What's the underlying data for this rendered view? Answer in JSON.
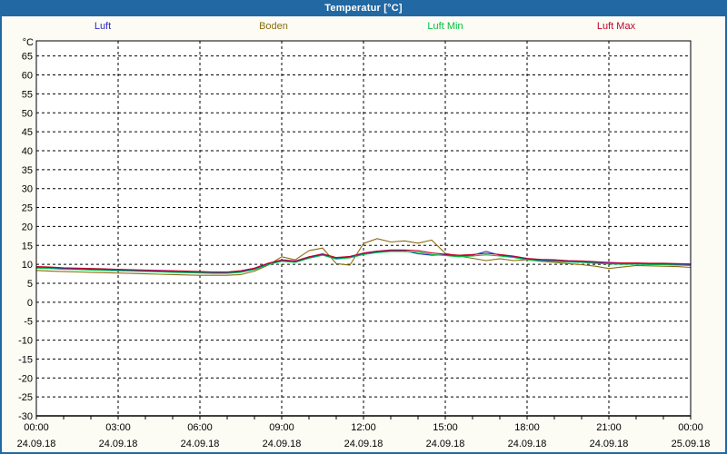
{
  "window": {
    "title": "Temperatur [°C]"
  },
  "colors": {
    "titlebar_bg": "#2268A2",
    "titlebar_text": "#FFFFFF",
    "window_bg": "#FCFCF4",
    "plot_bg": "#FFFFFF",
    "grid": "#000000",
    "axis": "#000000",
    "luft": "#2A2ACC",
    "boden": "#8A6C10",
    "luft_min": "#00BE40",
    "luft_max": "#C00028"
  },
  "chart_data": {
    "type": "line",
    "title": "Temperatur [°C]",
    "ylabel": "°C",
    "ylim": [
      -30,
      69
    ],
    "y_tick_min": -30,
    "y_tick_max": 65,
    "y_tick_step": 5,
    "x_range_hours": [
      0,
      24
    ],
    "x_start_hour": 0,
    "x_step_hours": 0.5,
    "grid": "dashed",
    "legend_position": "top",
    "x_ticks": [
      {
        "hour": 0,
        "time": "00:00",
        "date": "24.09.18"
      },
      {
        "hour": 3,
        "time": "03:00",
        "date": "24.09.18"
      },
      {
        "hour": 6,
        "time": "06:00",
        "date": "24.09.18"
      },
      {
        "hour": 9,
        "time": "09:00",
        "date": "24.09.18"
      },
      {
        "hour": 12,
        "time": "12:00",
        "date": "24.09.18"
      },
      {
        "hour": 15,
        "time": "15:00",
        "date": "24.09.18"
      },
      {
        "hour": 18,
        "time": "18:00",
        "date": "24.09.18"
      },
      {
        "hour": 21,
        "time": "21:00",
        "date": "24.09.18"
      },
      {
        "hour": 24,
        "time": "00:00",
        "date": "25.09.18"
      }
    ],
    "series": [
      {
        "key": "luft",
        "name": "Luft",
        "color": "#2A2ACC",
        "values": [
          9.2,
          9.1,
          8.9,
          8.8,
          8.7,
          8.6,
          8.5,
          8.4,
          8.3,
          8.2,
          8.1,
          8.0,
          7.9,
          7.8,
          7.8,
          8.1,
          8.8,
          10.1,
          11.0,
          10.7,
          11.8,
          12.6,
          11.6,
          11.9,
          12.8,
          13.3,
          13.6,
          13.6,
          12.8,
          12.4,
          12.5,
          12.2,
          12.4,
          13.4,
          12.4,
          12.0,
          11.4,
          11.1,
          11.0,
          10.8,
          10.7,
          10.5,
          10.3,
          10.2,
          10.2,
          10.1,
          10.1,
          10.0,
          9.9
        ]
      },
      {
        "key": "boden",
        "name": "Boden",
        "color": "#8A6C10",
        "values": [
          8.4,
          8.2,
          8.1,
          8.0,
          7.9,
          7.8,
          7.7,
          7.6,
          7.5,
          7.4,
          7.3,
          7.2,
          7.1,
          7.1,
          7.1,
          7.3,
          8.2,
          9.8,
          12.0,
          11.2,
          13.6,
          14.3,
          10.2,
          9.8,
          15.5,
          16.8,
          15.9,
          16.2,
          15.6,
          16.4,
          12.9,
          12.2,
          11.6,
          11.0,
          11.5,
          11.0,
          11.2,
          10.8,
          10.5,
          10.2,
          9.9,
          9.5,
          8.9,
          9.3,
          9.7,
          9.6,
          9.5,
          9.4,
          9.2
        ]
      },
      {
        "key": "luft-min",
        "name": "Luft Min",
        "color": "#00BE40",
        "values": [
          9.0,
          8.9,
          8.7,
          8.6,
          8.5,
          8.4,
          8.3,
          8.2,
          8.1,
          8.0,
          7.9,
          7.8,
          7.7,
          7.6,
          7.6,
          7.9,
          8.6,
          9.9,
          10.8,
          10.5,
          11.6,
          12.4,
          11.4,
          11.7,
          12.6,
          13.1,
          13.4,
          13.4,
          13.2,
          12.6,
          12.3,
          12.0,
          12.2,
          12.5,
          12.2,
          11.8,
          11.2,
          10.9,
          10.8,
          10.6,
          10.5,
          10.3,
          10.1,
          10.0,
          10.0,
          9.9,
          9.9,
          9.8,
          9.7
        ]
      },
      {
        "key": "luft-max",
        "name": "Luft Max",
        "color": "#C00028",
        "values": [
          9.4,
          9.3,
          9.1,
          9.0,
          8.9,
          8.8,
          8.7,
          8.6,
          8.5,
          8.4,
          8.3,
          8.2,
          8.1,
          8.0,
          8.0,
          8.3,
          9.0,
          10.3,
          11.2,
          10.9,
          12.0,
          12.8,
          11.8,
          12.1,
          13.0,
          13.5,
          13.8,
          13.8,
          13.6,
          13.0,
          12.7,
          12.4,
          12.6,
          12.9,
          12.6,
          12.2,
          11.6,
          11.3,
          11.2,
          11.0,
          10.9,
          10.7,
          10.5,
          10.4,
          10.4,
          10.3,
          10.3,
          10.2,
          10.1
        ]
      }
    ]
  }
}
